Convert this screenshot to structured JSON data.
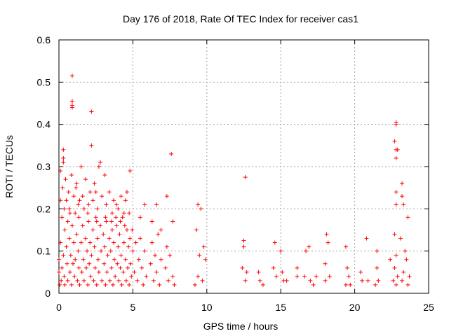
{
  "chart_data": {
    "type": "scatter",
    "title": "Day 176 of 2018, Rate Of TEC Index for receiver cas1",
    "xlabel": "GPS time / hours",
    "ylabel": "ROTI / TECUs",
    "xlim": [
      0,
      25
    ],
    "ylim": [
      0,
      0.6
    ],
    "xticks": [
      "0",
      "5",
      "10",
      "15",
      "20",
      "25"
    ],
    "yticks": [
      "0",
      "0.1",
      "0.2",
      "0.3",
      "0.4",
      "0.5",
      "0.6"
    ],
    "grid": true,
    "marker": "+",
    "color": "#ff0000",
    "series": [
      {
        "name": "ROTI",
        "points": [
          [
            0.9,
            0.515
          ],
          [
            0.9,
            0.455
          ],
          [
            0.9,
            0.445
          ],
          [
            0.9,
            0.44
          ],
          [
            2.2,
            0.43
          ],
          [
            2.2,
            0.35
          ],
          [
            0.3,
            0.34
          ],
          [
            0.3,
            0.32
          ],
          [
            0.3,
            0.31
          ],
          [
            0.1,
            0.29
          ],
          [
            0.1,
            0.22
          ],
          [
            1.5,
            0.3
          ],
          [
            2.8,
            0.31
          ],
          [
            2.7,
            0.3
          ],
          [
            3.1,
            0.28
          ],
          [
            4.8,
            0.29
          ],
          [
            2.4,
            0.26
          ],
          [
            2.5,
            0.24
          ],
          [
            4.6,
            0.24
          ],
          [
            4.5,
            0.22
          ],
          [
            1.2,
            0.26
          ],
          [
            1.0,
            0.23
          ],
          [
            0.5,
            0.22
          ],
          [
            5.8,
            0.21
          ],
          [
            6.6,
            0.21
          ],
          [
            7.3,
            0.23
          ],
          [
            7.6,
            0.33
          ],
          [
            7.7,
            0.17
          ],
          [
            3.6,
            0.19
          ],
          [
            3.9,
            0.21
          ],
          [
            1.7,
            0.2
          ],
          [
            2.0,
            0.21
          ],
          [
            0.7,
            0.2
          ],
          [
            5.5,
            0.18
          ],
          [
            6.3,
            0.17
          ],
          [
            6.9,
            0.15
          ],
          [
            9.4,
            0.21
          ],
          [
            9.6,
            0.2
          ],
          [
            9.8,
            0.11
          ],
          [
            9.3,
            0.15
          ],
          [
            9.5,
            0.09
          ],
          [
            9.9,
            0.08
          ],
          [
            9.4,
            0.04
          ],
          [
            9.7,
            0.03
          ],
          [
            9.2,
            0.02
          ],
          [
            12.6,
            0.275
          ],
          [
            12.5,
            0.125
          ],
          [
            12.5,
            0.11
          ],
          [
            12.4,
            0.06
          ],
          [
            12.7,
            0.05
          ],
          [
            12.6,
            0.03
          ],
          [
            13.5,
            0.05
          ],
          [
            13.6,
            0.03
          ],
          [
            13.8,
            0.02
          ],
          [
            14.6,
            0.12
          ],
          [
            14.5,
            0.06
          ],
          [
            14.7,
            0.04
          ],
          [
            15.0,
            0.1
          ],
          [
            15.1,
            0.05
          ],
          [
            15.2,
            0.03
          ],
          [
            15.4,
            0.03
          ],
          [
            16.1,
            0.06
          ],
          [
            16.1,
            0.04
          ],
          [
            16.7,
            0.1
          ],
          [
            16.9,
            0.11
          ],
          [
            16.6,
            0.04
          ],
          [
            17.0,
            0.03
          ],
          [
            17.2,
            0.02
          ],
          [
            17.4,
            0.04
          ],
          [
            18.0,
            0.07
          ],
          [
            18.1,
            0.14
          ],
          [
            18.2,
            0.12
          ],
          [
            18.0,
            0.03
          ],
          [
            18.3,
            0.04
          ],
          [
            19.4,
            0.11
          ],
          [
            19.5,
            0.06
          ],
          [
            19.6,
            0.04
          ],
          [
            19.4,
            0.02
          ],
          [
            19.7,
            0.02
          ],
          [
            20.4,
            0.05
          ],
          [
            20.5,
            0.03
          ],
          [
            20.8,
            0.13
          ],
          [
            20.9,
            0.03
          ],
          [
            21.5,
            0.1
          ],
          [
            21.5,
            0.06
          ],
          [
            21.6,
            0.03
          ],
          [
            21.4,
            0.02
          ],
          [
            22.4,
            0.08
          ],
          [
            22.6,
            0.03
          ],
          [
            22.8,
            0.405
          ],
          [
            22.8,
            0.4
          ],
          [
            22.7,
            0.36
          ],
          [
            22.8,
            0.34
          ],
          [
            22.9,
            0.34
          ],
          [
            22.8,
            0.32
          ],
          [
            22.8,
            0.24
          ],
          [
            22.8,
            0.21
          ],
          [
            22.7,
            0.14
          ],
          [
            22.8,
            0.09
          ],
          [
            22.7,
            0.06
          ],
          [
            22.9,
            0.04
          ],
          [
            22.8,
            0.02
          ],
          [
            23.2,
            0.26
          ],
          [
            23.3,
            0.21
          ],
          [
            23.2,
            0.23
          ],
          [
            23.1,
            0.13
          ],
          [
            23.4,
            0.1
          ],
          [
            23.6,
            0.18
          ],
          [
            23.5,
            0.08
          ],
          [
            23.3,
            0.05
          ],
          [
            23.7,
            0.04
          ],
          [
            23.6,
            0.02
          ],
          [
            23.2,
            0.03
          ],
          [
            0.0,
            0.08
          ],
          [
            0.0,
            0.05
          ],
          [
            0.05,
            0.02
          ],
          [
            0.1,
            0.12
          ],
          [
            0.15,
            0.03
          ],
          [
            0.2,
            0.18
          ],
          [
            0.2,
            0.06
          ],
          [
            0.3,
            0.09
          ],
          [
            0.35,
            0.04
          ],
          [
            0.4,
            0.15
          ],
          [
            0.4,
            0.02
          ],
          [
            0.5,
            0.11
          ],
          [
            0.55,
            0.07
          ],
          [
            0.6,
            0.17
          ],
          [
            0.6,
            0.03
          ],
          [
            0.7,
            0.13
          ],
          [
            0.75,
            0.05
          ],
          [
            0.8,
            0.09
          ],
          [
            0.85,
            0.02
          ],
          [
            0.9,
            0.16
          ],
          [
            0.95,
            0.07
          ],
          [
            1.0,
            0.12
          ],
          [
            1.05,
            0.04
          ],
          [
            1.1,
            0.19
          ],
          [
            1.1,
            0.08
          ],
          [
            1.2,
            0.14
          ],
          [
            1.25,
            0.03
          ],
          [
            1.3,
            0.1
          ],
          [
            1.35,
            0.06
          ],
          [
            1.4,
            0.22
          ],
          [
            1.4,
            0.02
          ],
          [
            1.5,
            0.12
          ],
          [
            1.55,
            0.05
          ],
          [
            1.6,
            0.16
          ],
          [
            1.65,
            0.08
          ],
          [
            1.7,
            0.03
          ],
          [
            1.8,
            0.13
          ],
          [
            1.85,
            0.06
          ],
          [
            1.9,
            0.1
          ],
          [
            1.95,
            0.02
          ],
          [
            2.0,
            0.17
          ],
          [
            2.05,
            0.07
          ],
          [
            2.1,
            0.12
          ],
          [
            2.15,
            0.04
          ],
          [
            2.2,
            0.09
          ],
          [
            2.3,
            0.15
          ],
          [
            2.35,
            0.03
          ],
          [
            2.4,
            0.11
          ],
          [
            2.45,
            0.06
          ],
          [
            2.5,
            0.18
          ],
          [
            2.55,
            0.02
          ],
          [
            2.6,
            0.13
          ],
          [
            2.65,
            0.08
          ],
          [
            2.7,
            0.05
          ],
          [
            2.8,
            0.16
          ],
          [
            2.85,
            0.1
          ],
          [
            2.9,
            0.03
          ],
          [
            3.0,
            0.14
          ],
          [
            3.05,
            0.07
          ],
          [
            3.1,
            0.11
          ],
          [
            3.15,
            0.02
          ],
          [
            3.2,
            0.17
          ],
          [
            3.25,
            0.05
          ],
          [
            3.3,
            0.09
          ],
          [
            3.4,
            0.13
          ],
          [
            3.45,
            0.03
          ],
          [
            3.5,
            0.1
          ],
          [
            3.55,
            0.06
          ],
          [
            3.6,
            0.15
          ],
          [
            3.65,
            0.02
          ],
          [
            3.7,
            0.12
          ],
          [
            3.75,
            0.08
          ],
          [
            3.8,
            0.04
          ],
          [
            3.9,
            0.16
          ],
          [
            3.95,
            0.07
          ],
          [
            4.0,
            0.11
          ],
          [
            4.05,
            0.03
          ],
          [
            4.1,
            0.14
          ],
          [
            4.15,
            0.06
          ],
          [
            4.2,
            0.09
          ],
          [
            4.25,
            0.02
          ],
          [
            4.3,
            0.18
          ],
          [
            4.35,
            0.05
          ],
          [
            4.4,
            0.12
          ],
          [
            4.5,
            0.08
          ],
          [
            4.55,
            0.03
          ],
          [
            4.6,
            0.15
          ],
          [
            4.65,
            0.06
          ],
          [
            4.7,
            0.11
          ],
          [
            4.75,
            0.02
          ],
          [
            4.8,
            0.13
          ],
          [
            4.85,
            0.07
          ],
          [
            4.9,
            0.04
          ],
          [
            5.0,
            0.1
          ],
          [
            5.1,
            0.05
          ],
          [
            5.2,
            0.12
          ],
          [
            5.3,
            0.03
          ],
          [
            5.4,
            0.08
          ],
          [
            5.5,
            0.13
          ],
          [
            5.6,
            0.06
          ],
          [
            5.7,
            0.02
          ],
          [
            5.8,
            0.1
          ],
          [
            5.9,
            0.04
          ],
          [
            6.2,
            0.07
          ],
          [
            6.3,
            0.12
          ],
          [
            6.4,
            0.03
          ],
          [
            6.5,
            0.09
          ],
          [
            6.6,
            0.05
          ],
          [
            6.7,
            0.14
          ],
          [
            6.8,
            0.02
          ],
          [
            6.9,
            0.08
          ],
          [
            7.2,
            0.06
          ],
          [
            7.3,
            0.11
          ],
          [
            7.4,
            0.03
          ],
          [
            7.5,
            0.09
          ],
          [
            7.7,
            0.04
          ],
          [
            7.8,
            0.02
          ],
          [
            0.25,
            0.25
          ],
          [
            0.45,
            0.27
          ],
          [
            0.65,
            0.24
          ],
          [
            0.85,
            0.28
          ],
          [
            1.15,
            0.25
          ],
          [
            1.3,
            0.21
          ],
          [
            1.6,
            0.23
          ],
          [
            1.8,
            0.27
          ],
          [
            2.1,
            0.24
          ],
          [
            2.3,
            0.22
          ],
          [
            2.6,
            0.2
          ],
          [
            2.9,
            0.23
          ],
          [
            3.2,
            0.21
          ],
          [
            3.4,
            0.24
          ],
          [
            3.7,
            0.22
          ],
          [
            4.0,
            0.2
          ],
          [
            4.2,
            0.23
          ],
          [
            4.4,
            0.19
          ],
          [
            0.35,
            0.2
          ],
          [
            0.75,
            0.19
          ],
          [
            1.35,
            0.18
          ],
          [
            1.95,
            0.19
          ],
          [
            2.55,
            0.17
          ],
          [
            3.15,
            0.18
          ],
          [
            3.55,
            0.17
          ],
          [
            3.85,
            0.18
          ],
          [
            4.15,
            0.17
          ],
          [
            4.45,
            0.16
          ],
          [
            4.75,
            0.19
          ],
          [
            4.95,
            0.15
          ]
        ]
      }
    ]
  }
}
